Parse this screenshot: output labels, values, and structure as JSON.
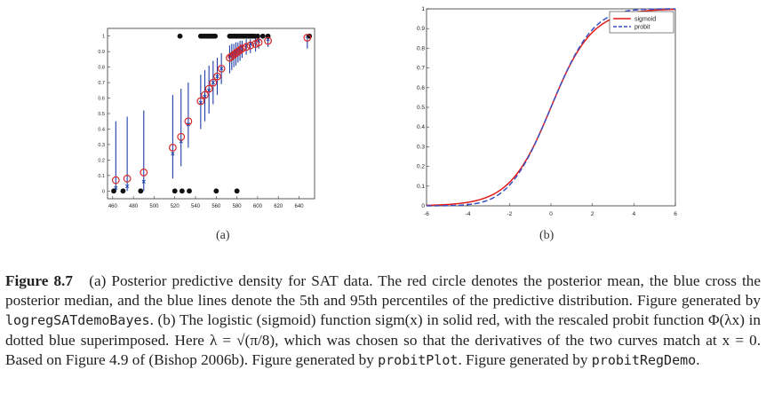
{
  "chart_data": [
    {
      "type": "scatter",
      "panel_label": "(a)",
      "xlim": [
        455,
        655
      ],
      "ylim": [
        -0.05,
        1.05
      ],
      "xticks": [
        "460",
        "480",
        "500",
        "520",
        "540",
        "560",
        "580",
        "600",
        "620",
        "640"
      ],
      "yticks": [
        "0",
        "0.1",
        "0.2",
        "0.3",
        "0.4",
        "0.5",
        "0.6",
        "0.7",
        "0.8",
        "0.9",
        "1"
      ],
      "grid": false,
      "observations": {
        "color": "#111111",
        "y1_x": [
          525,
          545,
          547,
          549,
          551,
          553,
          555,
          557,
          559,
          573,
          575,
          577,
          579,
          581,
          583,
          585,
          587,
          589,
          591,
          593,
          595,
          597,
          600,
          605,
          610,
          650
        ],
        "y0_x": [
          461,
          470,
          487,
          520,
          527,
          534,
          560,
          580
        ]
      },
      "predictions": {
        "x": [
          463,
          474,
          490,
          518,
          526,
          533,
          545,
          549,
          553,
          557,
          561,
          565,
          573,
          575,
          577,
          579,
          581,
          583,
          585,
          589,
          593,
          598,
          601,
          610,
          648
        ],
        "mean": [
          0.07,
          0.08,
          0.12,
          0.28,
          0.35,
          0.45,
          0.58,
          0.62,
          0.66,
          0.7,
          0.74,
          0.79,
          0.86,
          0.87,
          0.88,
          0.89,
          0.9,
          0.91,
          0.92,
          0.93,
          0.94,
          0.95,
          0.96,
          0.97,
          0.99
        ],
        "median": [
          0.02,
          0.03,
          0.06,
          0.24,
          0.32,
          0.43,
          0.57,
          0.61,
          0.65,
          0.7,
          0.74,
          0.79,
          0.87,
          0.88,
          0.89,
          0.9,
          0.91,
          0.92,
          0.93,
          0.94,
          0.95,
          0.96,
          0.97,
          0.98,
          1.0
        ],
        "p5": [
          0.0,
          0.0,
          0.0,
          0.08,
          0.16,
          0.28,
          0.4,
          0.45,
          0.5,
          0.56,
          0.62,
          0.69,
          0.76,
          0.78,
          0.8,
          0.81,
          0.83,
          0.84,
          0.86,
          0.88,
          0.89,
          0.9,
          0.92,
          0.93,
          0.92
        ],
        "p95": [
          0.45,
          0.48,
          0.52,
          0.62,
          0.66,
          0.7,
          0.75,
          0.78,
          0.81,
          0.84,
          0.86,
          0.89,
          0.94,
          0.95,
          0.95,
          0.96,
          0.96,
          0.97,
          0.97,
          0.98,
          0.98,
          0.99,
          0.99,
          1.0,
          1.0
        ],
        "mean_color": "#d62728",
        "interval_color": "#1f3fa8"
      }
    },
    {
      "type": "line",
      "panel_label": "(b)",
      "xlim": [
        -6,
        6
      ],
      "ylim": [
        0,
        1
      ],
      "xticks": [
        "-6",
        "-4",
        "-2",
        "0",
        "2",
        "4",
        "6"
      ],
      "yticks": [
        "0",
        "0.1",
        "0.2",
        "0.3",
        "0.4",
        "0.5",
        "0.6",
        "0.7",
        "0.8",
        "0.9",
        "1"
      ],
      "grid": false,
      "legend_position": "top-right",
      "lambda_squared": 0.392699,
      "series": [
        {
          "name": "sigmoid",
          "function": "sigmoid",
          "color": "#e41a1c",
          "dash": "solid"
        },
        {
          "name": "probit",
          "function": "probit",
          "color": "#3a4fc4",
          "dash": "dashed"
        }
      ]
    }
  ],
  "labels": {
    "a": "(a)",
    "b": "(b)"
  },
  "caption": {
    "figure": "Figure 8.7",
    "seg1": "(a) Posterior predictive density for SAT data. The red circle denotes the posterior mean, the blue cross the posterior median, and the blue lines denote the 5th and 95th percentiles of the predictive distribution. Figure generated by",
    "code1": "logregSATdemoBayes",
    "seg2": ". (b) The logistic (sigmoid) function sigm(x) in solid red, with the rescaled probit function Φ(λx) in dotted blue superimposed. Here λ = √(π/8), which was chosen so that the derivatives of the two curves match at x = 0. Based on Figure 4.9 of (Bishop 2006b). Figure generated by",
    "code2": "probitPlot",
    "seg3": ". Figure generated by",
    "code3": "probitRegDemo",
    "seg4": "."
  }
}
